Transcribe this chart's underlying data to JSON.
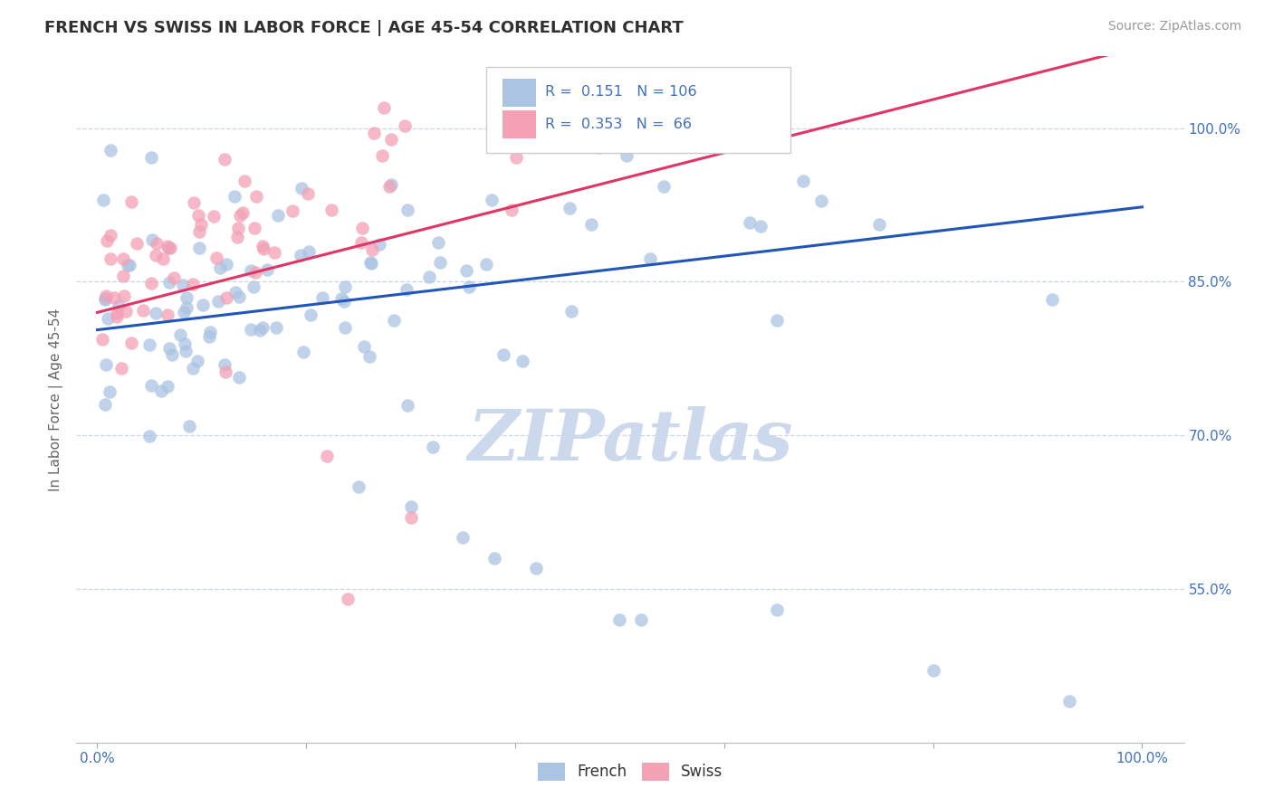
{
  "title": "FRENCH VS SWISS IN LABOR FORCE | AGE 45-54 CORRELATION CHART",
  "source_text": "Source: ZipAtlas.com",
  "ylabel": "In Labor Force | Age 45-54",
  "french_R": 0.151,
  "french_N": 106,
  "swiss_R": 0.353,
  "swiss_N": 66,
  "french_color": "#aac4e2",
  "swiss_color": "#f4a0b5",
  "french_line_color": "#2255bb",
  "swiss_line_color": "#e03565",
  "watermark": "ZIPatlas",
  "watermark_color": "#ccd8ec",
  "title_color": "#303030",
  "axis_color": "#4070c0",
  "grid_color": "#c8d4e8",
  "yticks": [
    0.55,
    0.7,
    0.85,
    1.0
  ],
  "xlim": [
    -0.02,
    1.04
  ],
  "ylim": [
    0.4,
    1.07
  ]
}
